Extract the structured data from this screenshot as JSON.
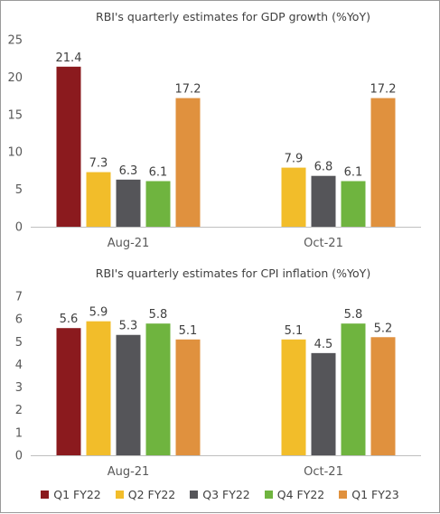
{
  "chart_data": [
    {
      "type": "bar",
      "title": "RBI's quarterly estimates for GDP growth (%YoY)",
      "categories": [
        "Aug-21",
        "Oct-21"
      ],
      "ylim": [
        0,
        25
      ],
      "yticks": [
        0,
        5,
        10,
        15,
        20,
        25
      ],
      "series": [
        {
          "name": "Q1 FY22",
          "values": [
            21.4,
            null
          ]
        },
        {
          "name": "Q2 FY22",
          "values": [
            7.3,
            7.9
          ]
        },
        {
          "name": "Q3 FY22",
          "values": [
            6.3,
            6.8
          ]
        },
        {
          "name": "Q4 FY22",
          "values": [
            6.1,
            6.1
          ]
        },
        {
          "name": "Q1 FY23",
          "values": [
            17.2,
            17.2
          ]
        }
      ],
      "grid": false
    },
    {
      "type": "bar",
      "title": "RBI's quarterly estimates for CPI inflation (%YoY)",
      "categories": [
        "Aug-21",
        "Oct-21"
      ],
      "ylim": [
        0,
        7
      ],
      "yticks": [
        0,
        1,
        2,
        3,
        4,
        5,
        6,
        7
      ],
      "series": [
        {
          "name": "Q1 FY22",
          "values": [
            5.6,
            null
          ]
        },
        {
          "name": "Q2 FY22",
          "values": [
            5.9,
            5.1
          ]
        },
        {
          "name": "Q3 FY22",
          "values": [
            5.3,
            4.5
          ]
        },
        {
          "name": "Q4 FY22",
          "values": [
            5.8,
            5.8
          ]
        },
        {
          "name": "Q1 FY23",
          "values": [
            5.1,
            5.2
          ]
        }
      ],
      "grid": false
    }
  ],
  "legend": {
    "position": "bottom",
    "items": [
      {
        "label": "Q1 FY22",
        "color": "#8b1a1e"
      },
      {
        "label": "Q2 FY22",
        "color": "#f2bd2a"
      },
      {
        "label": "Q3 FY22",
        "color": "#555559"
      },
      {
        "label": "Q4 FY22",
        "color": "#6fb43f"
      },
      {
        "label": "Q1 FY23",
        "color": "#e0913e"
      }
    ]
  }
}
